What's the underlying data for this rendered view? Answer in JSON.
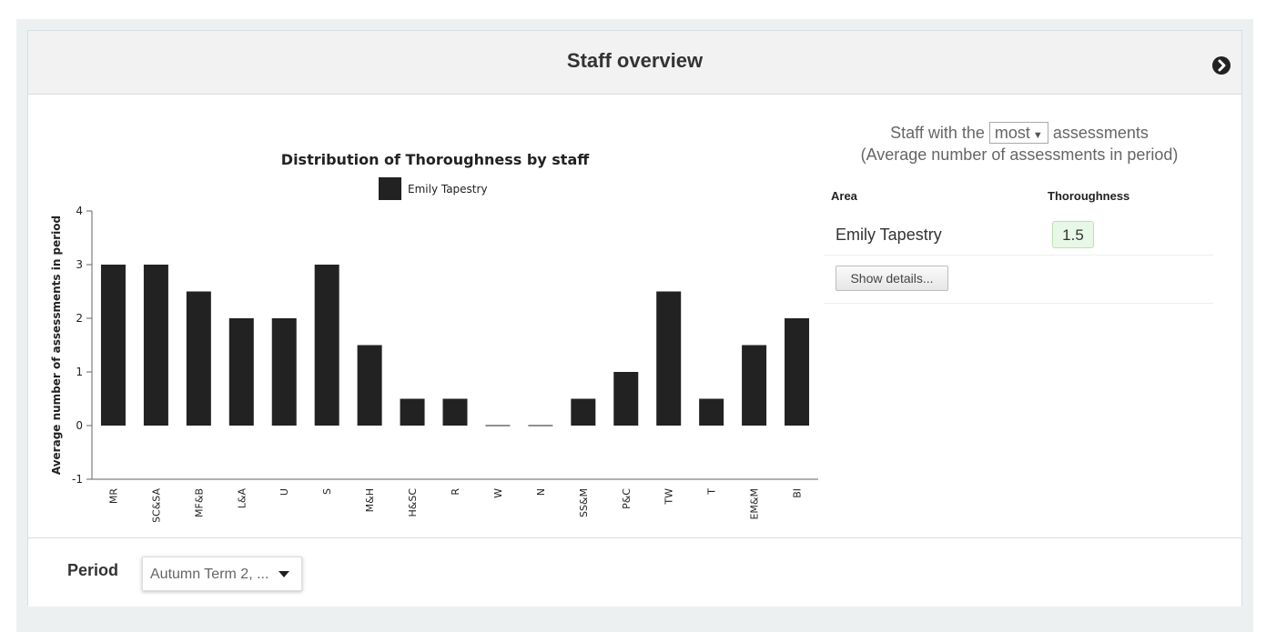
{
  "header": {
    "title": "Staff overview",
    "nav_icon": "chevron-right-circle-icon"
  },
  "chart_data": {
    "type": "bar",
    "title": "Distribution of Thoroughness by staff",
    "ylabel": "Average number of assessments in period",
    "xlabel": "",
    "ylim": [
      -1,
      4
    ],
    "yticks": [
      "-1",
      "0",
      "1",
      "2",
      "3",
      "4"
    ],
    "legend_placement": "top-center",
    "grid": false,
    "categories": [
      "MR",
      "SC&SA",
      "MF&B",
      "L&A",
      "U",
      "S",
      "M&H",
      "H&SC",
      "R",
      "W",
      "N",
      "SS&M",
      "P&C",
      "TW",
      "T",
      "EM&M",
      "BI"
    ],
    "series": [
      {
        "name": "Emily Tapestry",
        "color": "#222222",
        "values": [
          3,
          3,
          2.5,
          2,
          2,
          3,
          1.5,
          0.5,
          0.5,
          0,
          0,
          0.5,
          1,
          2.5,
          0.5,
          1.5,
          2
        ]
      }
    ]
  },
  "summary": {
    "prefix": "Staff with the",
    "selected": "most",
    "suffix": "assessments",
    "subtitle": "(Average number of assessments in period)"
  },
  "table": {
    "headers": {
      "area": "Area",
      "metric": "Thoroughness"
    },
    "rows": [
      {
        "name": "Emily Tapestry",
        "value": "1.5"
      }
    ]
  },
  "details_button": "Show details...",
  "footer": {
    "period_label": "Period",
    "period_value": "Autumn Term 2, ..."
  },
  "colors": {
    "bar": "#222222",
    "badge_bg": "#e8f8e6",
    "panel_bg": "#ecf0f1"
  }
}
